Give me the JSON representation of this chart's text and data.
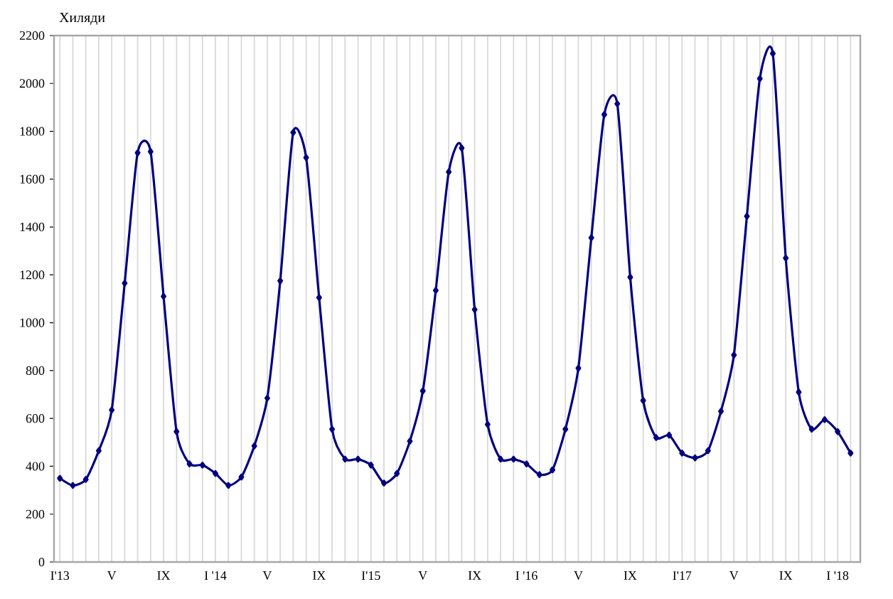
{
  "chart_data": {
    "type": "line",
    "ylabel": "Хиляди",
    "categories": [
      "I'13",
      null,
      null,
      null,
      "V",
      null,
      null,
      null,
      "IX",
      null,
      null,
      null,
      "I '14",
      null,
      null,
      null,
      "V",
      null,
      null,
      null,
      "IX",
      null,
      null,
      null,
      "I'15",
      null,
      null,
      null,
      "V",
      null,
      null,
      null,
      "IX",
      null,
      null,
      null,
      "I '16",
      null,
      null,
      null,
      "V",
      null,
      null,
      null,
      "IX",
      null,
      null,
      null,
      "I'17",
      null,
      null,
      null,
      "V",
      null,
      null,
      null,
      "IX",
      null,
      null,
      null,
      "I '18",
      null
    ],
    "series": [
      {
        "color": "#000080",
        "values": [
          350,
          320,
          345,
          465,
          635,
          1165,
          1710,
          1715,
          1110,
          545,
          410,
          405,
          370,
          320,
          355,
          485,
          685,
          1175,
          1795,
          1690,
          1105,
          555,
          430,
          430,
          405,
          330,
          370,
          505,
          715,
          1135,
          1630,
          1730,
          1055,
          575,
          430,
          430,
          410,
          365,
          385,
          555,
          810,
          1355,
          1870,
          1915,
          1190,
          675,
          520,
          530,
          455,
          435,
          465,
          630,
          865,
          1445,
          2020,
          2125,
          1270,
          710,
          555,
          595,
          545,
          455
        ]
      }
    ],
    "ylim": [
      0,
      2200
    ],
    "yticks": [
      0,
      200,
      400,
      600,
      800,
      1000,
      1200,
      1400,
      1600,
      1800,
      2000,
      2200
    ],
    "grid": "x",
    "marker": "diamond",
    "line_style": "solid"
  }
}
